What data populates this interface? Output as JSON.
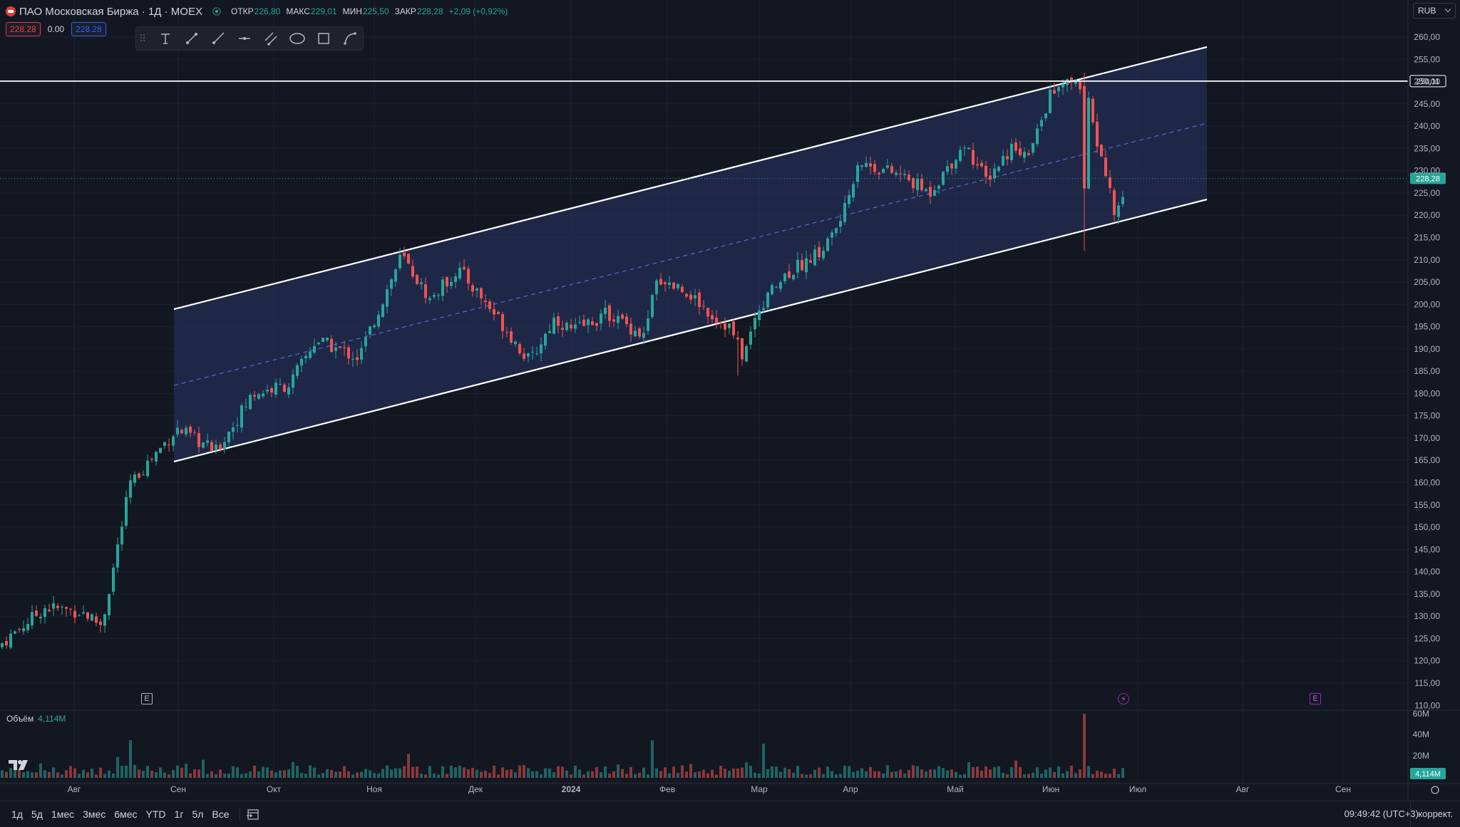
{
  "header": {
    "symbol_title": "ПАО Московская Биржа · 1Д · MOEX",
    "ohlc": [
      {
        "label": "ОТКР",
        "value": "226,80"
      },
      {
        "label": "МАКС",
        "value": "229,01"
      },
      {
        "label": "МИН",
        "value": "225,50"
      },
      {
        "label": "ЗАКР",
        "value": "228,28"
      }
    ],
    "change": "+2,09 (+0,92%)",
    "sell_price": "228.28",
    "spread": "0.00",
    "buy_price": "228.28",
    "currency": "RUB"
  },
  "drawing_toolbar": {
    "tools": [
      "text-tool-icon",
      "trend-line-icon",
      "ray-icon",
      "horizontal-ray-icon",
      "parallel-channel-icon",
      "ellipse-icon",
      "rectangle-icon",
      "path-icon"
    ]
  },
  "price_axis": {
    "labels": [
      "260,00",
      "255,00",
      "250,00",
      "245,00",
      "240,00",
      "235,00",
      "230,00",
      "225,00",
      "220,00",
      "215,00",
      "210,00",
      "205,00",
      "200,00",
      "195,00",
      "190,00",
      "185,00",
      "180,00",
      "175,00",
      "170,00",
      "165,00",
      "160,00",
      "155,00",
      "150,00",
      "145,00",
      "140,00",
      "135,00",
      "130,00",
      "125,00",
      "120,00",
      "115,00",
      "110,00"
    ],
    "hline_label": "250,11",
    "last_price_label": "228,28"
  },
  "volume": {
    "title": "Объём",
    "value": "4,114M",
    "axis_labels": [
      "60M",
      "40M",
      "20M"
    ],
    "last_label": "4,114M"
  },
  "time_axis": {
    "labels": [
      "Авг",
      "Сен",
      "Окт",
      "Ноя",
      "Дек",
      "2024",
      "Фев",
      "Мар",
      "Апр",
      "Май",
      "Июн",
      "Июл",
      "Авг",
      "Сен"
    ]
  },
  "markers": {
    "earnings": "E",
    "dividend": "⚡"
  },
  "bottom_bar": {
    "ranges": [
      "1д",
      "5д",
      "1мес",
      "3мес",
      "6мес",
      "YTD",
      "1г",
      "5л",
      "Все"
    ],
    "time": "09:49:42 (UTC+3)",
    "adjust": "коррект."
  },
  "colors": {
    "up": "#26a69a",
    "down": "#ef5350",
    "channel_fill": "#2a3566",
    "background": "#131722"
  }
}
